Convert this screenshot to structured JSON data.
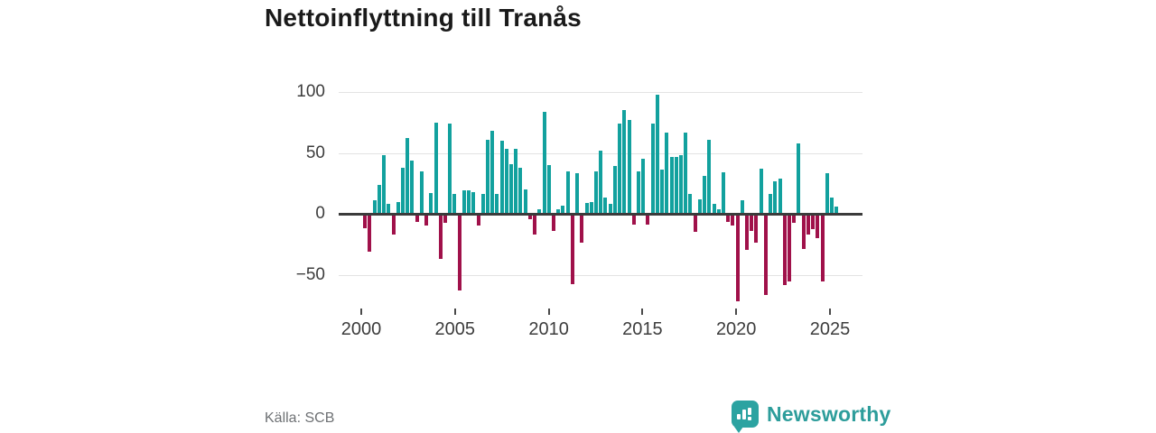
{
  "title": "Nettoinflyttning till Tranås",
  "source": {
    "label": "Källa: SCB"
  },
  "branding": {
    "name": "Newsworthy",
    "color": "#2d9d9b",
    "icon": "bar-chart-speech-bubble-icon"
  },
  "chart_data": {
    "type": "bar",
    "title": "Nettoinflyttning till Tranås",
    "frequency": "quarterly",
    "start_period": "2000 Q1",
    "end_period": "2025 Q2",
    "xlabel": "",
    "ylabel": "",
    "grid": true,
    "ylim": [
      -80,
      110
    ],
    "y_ticks": [
      100,
      50,
      0,
      -50
    ],
    "y_tick_labels": [
      "100",
      "50",
      "0",
      "−50"
    ],
    "x_tick_labels": [
      "2000",
      "2005",
      "2010",
      "2015",
      "2020",
      "2025"
    ],
    "positive_color": "#12a19e",
    "negative_color": "#a0114a",
    "values": [
      1,
      -11,
      -30,
      11,
      24,
      48,
      8,
      -16,
      10,
      38,
      62,
      44,
      -6,
      35,
      -9,
      17,
      75,
      -36,
      -7,
      74,
      16,
      -62,
      19,
      19,
      18,
      -9,
      16,
      61,
      68,
      16,
      60,
      53,
      41,
      53,
      38,
      20,
      -4,
      -16,
      4,
      84,
      40,
      -13,
      4,
      7,
      35,
      -57,
      33,
      -23,
      9,
      10,
      35,
      52,
      13,
      8,
      39,
      74,
      85,
      77,
      -8,
      35,
      45,
      -8,
      74,
      98,
      36,
      67,
      47,
      47,
      48,
      67,
      16,
      -14,
      12,
      31,
      61,
      8,
      4,
      34,
      -6,
      -9,
      -71,
      11,
      -29,
      -13,
      -23,
      37,
      -66,
      16,
      27,
      29,
      -58,
      -55,
      -7,
      58,
      -28,
      -16,
      -12,
      -19,
      -55,
      33,
      13,
      6
    ]
  }
}
